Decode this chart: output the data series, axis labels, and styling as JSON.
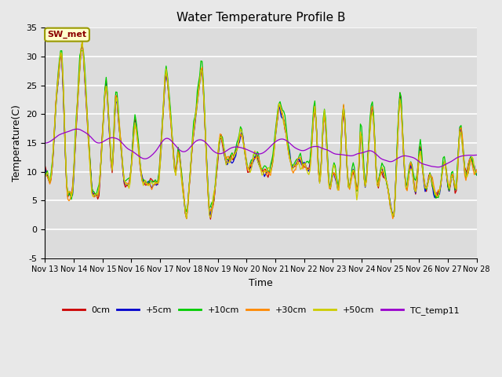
{
  "title": "Water Temperature Profile B",
  "xlabel": "Time",
  "ylabel": "Temperature(C)",
  "ylim": [
    -5,
    35
  ],
  "xlim": [
    0,
    360
  ],
  "annotation": "SW_met",
  "series_labels": [
    "0cm",
    "+5cm",
    "+10cm",
    "+30cm",
    "+50cm",
    "TC_temp11"
  ],
  "series_colors": [
    "#cc0000",
    "#0000cc",
    "#00cc00",
    "#ff8800",
    "#cccc00",
    "#9900cc"
  ],
  "tick_labels": [
    "Nov 13",
    "Nov 14",
    "Nov 15",
    "Nov 16",
    "Nov 17",
    "Nov 18",
    "Nov 19",
    "Nov 20",
    "Nov 21",
    "Nov 22",
    "Nov 23",
    "Nov 24",
    "Nov 25",
    "Nov 26",
    "Nov 27",
    "Nov 28"
  ],
  "tick_positions": [
    0,
    24,
    48,
    72,
    96,
    120,
    144,
    168,
    192,
    216,
    240,
    264,
    288,
    312,
    336,
    360
  ],
  "bg_color": "#e8e8e8",
  "plot_bg_color": "#dcdcdc",
  "yticks": [
    -5,
    0,
    5,
    10,
    15,
    20,
    25,
    30,
    35
  ]
}
